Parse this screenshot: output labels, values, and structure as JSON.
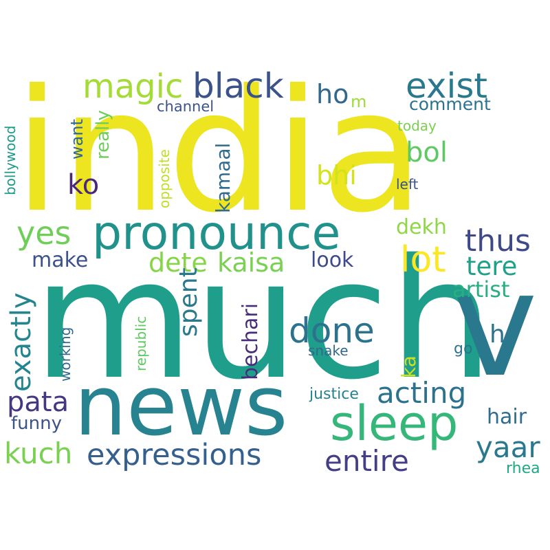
{
  "words": [
    {
      "key": "india",
      "text": "india",
      "color": "#ece51f"
    },
    {
      "key": "much",
      "text": "much",
      "color": "#1f9e8c"
    },
    {
      "key": "v",
      "text": "v",
      "color": "#2a788e"
    },
    {
      "key": "news",
      "text": "news",
      "color": "#26838f"
    },
    {
      "key": "pronounce",
      "text": "pronounce",
      "color": "#21918c"
    },
    {
      "key": "sleep",
      "text": "sleep",
      "color": "#35b779"
    },
    {
      "key": "expressions",
      "text": "expressions",
      "color": "#355f8d"
    },
    {
      "key": "magic",
      "text": "magic",
      "color": "#a5db36"
    },
    {
      "key": "black",
      "text": "black",
      "color": "#3b528b"
    },
    {
      "key": "exist",
      "text": "exist",
      "color": "#2a788e"
    },
    {
      "key": "hom",
      "text": "ho",
      "color": "#31688e"
    },
    {
      "key": "m_small",
      "text": "m",
      "color": "#a0da39"
    },
    {
      "key": "comment",
      "text": "comment",
      "color": "#2c728e"
    },
    {
      "key": "channel",
      "text": "channel",
      "color": "#3b528b"
    },
    {
      "key": "bol",
      "text": "bol",
      "color": "#5ec962"
    },
    {
      "key": "today",
      "text": "today",
      "color": "#7ad151"
    },
    {
      "key": "left",
      "text": "left",
      "color": "#3b528b"
    },
    {
      "key": "bhi",
      "text": "bhi",
      "color": "#d2e21b"
    },
    {
      "key": "ko",
      "text": "ko",
      "color": "#482878"
    },
    {
      "key": "want",
      "text": "want",
      "color": "#31688e"
    },
    {
      "key": "really",
      "text": "really",
      "color": "#6ccd5a"
    },
    {
      "key": "opposite",
      "text": "opposite",
      "color": "#bddf26"
    },
    {
      "key": "kamaal",
      "text": "kamaal",
      "color": "#306a8e"
    },
    {
      "key": "bollywood",
      "text": "bollywood",
      "color": "#1f9a8a"
    },
    {
      "key": "yes",
      "text": "yes",
      "color": "#6ece58"
    },
    {
      "key": "thus",
      "text": "thus",
      "color": "#3e4989"
    },
    {
      "key": "dekh",
      "text": "dekh",
      "color": "#8fd744"
    },
    {
      "key": "lot",
      "text": "lot",
      "color": "#fde725"
    },
    {
      "key": "tere",
      "text": "tere",
      "color": "#1fa088"
    },
    {
      "key": "make",
      "text": "make",
      "color": "#3b528b"
    },
    {
      "key": "dete",
      "text": "dete",
      "color": "#86d549"
    },
    {
      "key": "kaisa",
      "text": "kaisa",
      "color": "#7ad151"
    },
    {
      "key": "look",
      "text": "look",
      "color": "#3e4a89"
    },
    {
      "key": "artist",
      "text": "artist",
      "color": "#28ae80"
    },
    {
      "key": "exactly",
      "text": "exactly",
      "color": "#25858e"
    },
    {
      "key": "spent",
      "text": "spent",
      "color": "#2a788e"
    },
    {
      "key": "bechari",
      "text": "bechari",
      "color": "#472c7a"
    },
    {
      "key": "done",
      "text": "done",
      "color": "#2c728e"
    },
    {
      "key": "h",
      "text": "h",
      "color": "#2c728e"
    },
    {
      "key": "republic",
      "text": "republic",
      "color": "#5ec962"
    },
    {
      "key": "working",
      "text": "working",
      "color": "#31688e"
    },
    {
      "key": "snake",
      "text": "snake",
      "color": "#31688e"
    },
    {
      "key": "ka",
      "text": "ka",
      "color": "#cde11d"
    },
    {
      "key": "go",
      "text": "go",
      "color": "#2c728e"
    },
    {
      "key": "pata",
      "text": "pata",
      "color": "#453781"
    },
    {
      "key": "acting",
      "text": "acting",
      "color": "#2c728e"
    },
    {
      "key": "justice",
      "text": "justice",
      "color": "#26828e"
    },
    {
      "key": "funny",
      "text": "funny",
      "color": "#3b528b"
    },
    {
      "key": "hair",
      "text": "hair",
      "color": "#2f6c8e"
    },
    {
      "key": "kuch",
      "text": "kuch",
      "color": "#7ad151"
    },
    {
      "key": "yaar",
      "text": "yaar",
      "color": "#2a788e"
    },
    {
      "key": "entire",
      "text": "entire",
      "color": "#433e85"
    },
    {
      "key": "rhea",
      "text": "rhea",
      "color": "#22a884"
    }
  ]
}
